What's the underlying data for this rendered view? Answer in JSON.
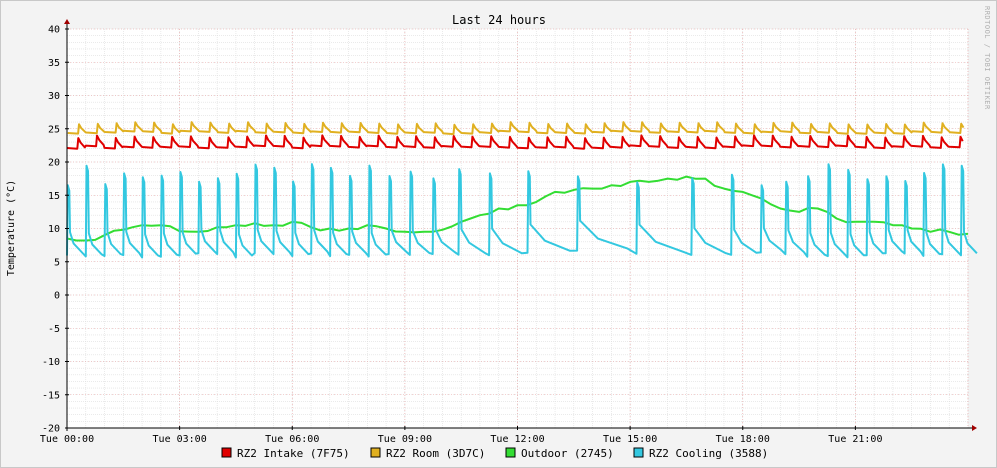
{
  "chart_data": {
    "type": "line",
    "title": "Last 24 hours",
    "ylabel": "Temperature (°C)",
    "watermark": "RRDTOOL / TOBI OETIKER",
    "ylim": [
      -20,
      40
    ],
    "y_ticks": [
      "-20",
      "-15",
      "-10",
      "-5",
      "0",
      "5",
      "10",
      "15",
      "20",
      "25",
      "30",
      "35",
      "40"
    ],
    "xlim_hours": [
      0,
      24
    ],
    "x_ticks": [
      "Tue 00:00",
      "Tue 03:00",
      "Tue 06:00",
      "Tue 09:00",
      "Tue 12:00",
      "Tue 15:00",
      "Tue 18:00",
      "Tue 21:00"
    ],
    "grid": true,
    "legend_position": "bottom",
    "series": [
      {
        "name": "RZ2 Intake (7F75)",
        "color": "#e00000",
        "kind": "sawtooth",
        "base": 22.3,
        "peak": 23.8,
        "period_hours": 0.5
      },
      {
        "name": "RZ2 Room (3D7C)",
        "color": "#e0b020",
        "kind": "sawtooth",
        "base": 24.5,
        "peak": 25.8,
        "period_hours": 0.5
      },
      {
        "name": "Outdoor (2745)",
        "color": "#33dd33",
        "kind": "line",
        "x": [
          0,
          0.5,
          1,
          1.5,
          2,
          2.5,
          3,
          3.5,
          4,
          4.5,
          5,
          5.5,
          6,
          6.5,
          7,
          7.5,
          8,
          8.5,
          9,
          9.5,
          10,
          10.5,
          11,
          11.5,
          12,
          12.5,
          13,
          13.5,
          14,
          14.5,
          15,
          15.5,
          16,
          16.5,
          17,
          17.5,
          18,
          18.5,
          19,
          19.5,
          20,
          20.5,
          21,
          21.5,
          22,
          22.5,
          23,
          23.5,
          24
        ],
        "values": [
          8.5,
          8.2,
          9.0,
          9.8,
          10.5,
          10.5,
          9.6,
          9.5,
          10.2,
          10.5,
          10.8,
          10.5,
          11.0,
          10.2,
          10.0,
          10.0,
          10.5,
          10.0,
          9.5,
          9.5,
          9.8,
          11.0,
          12.0,
          13.0,
          13.5,
          14.0,
          15.5,
          15.8,
          16.0,
          16.5,
          17.0,
          17.0,
          17.5,
          17.8,
          17.5,
          16.0,
          15.5,
          14.5,
          13.0,
          12.5,
          13.0,
          11.5,
          11.0,
          11.0,
          10.5,
          10.0,
          9.5,
          9.5,
          9.2
        ]
      },
      {
        "name": "RZ2 Cooling (3588)",
        "color": "#33c8e0",
        "kind": "cooling",
        "base": 5.5,
        "peak": 18.0
      }
    ]
  }
}
